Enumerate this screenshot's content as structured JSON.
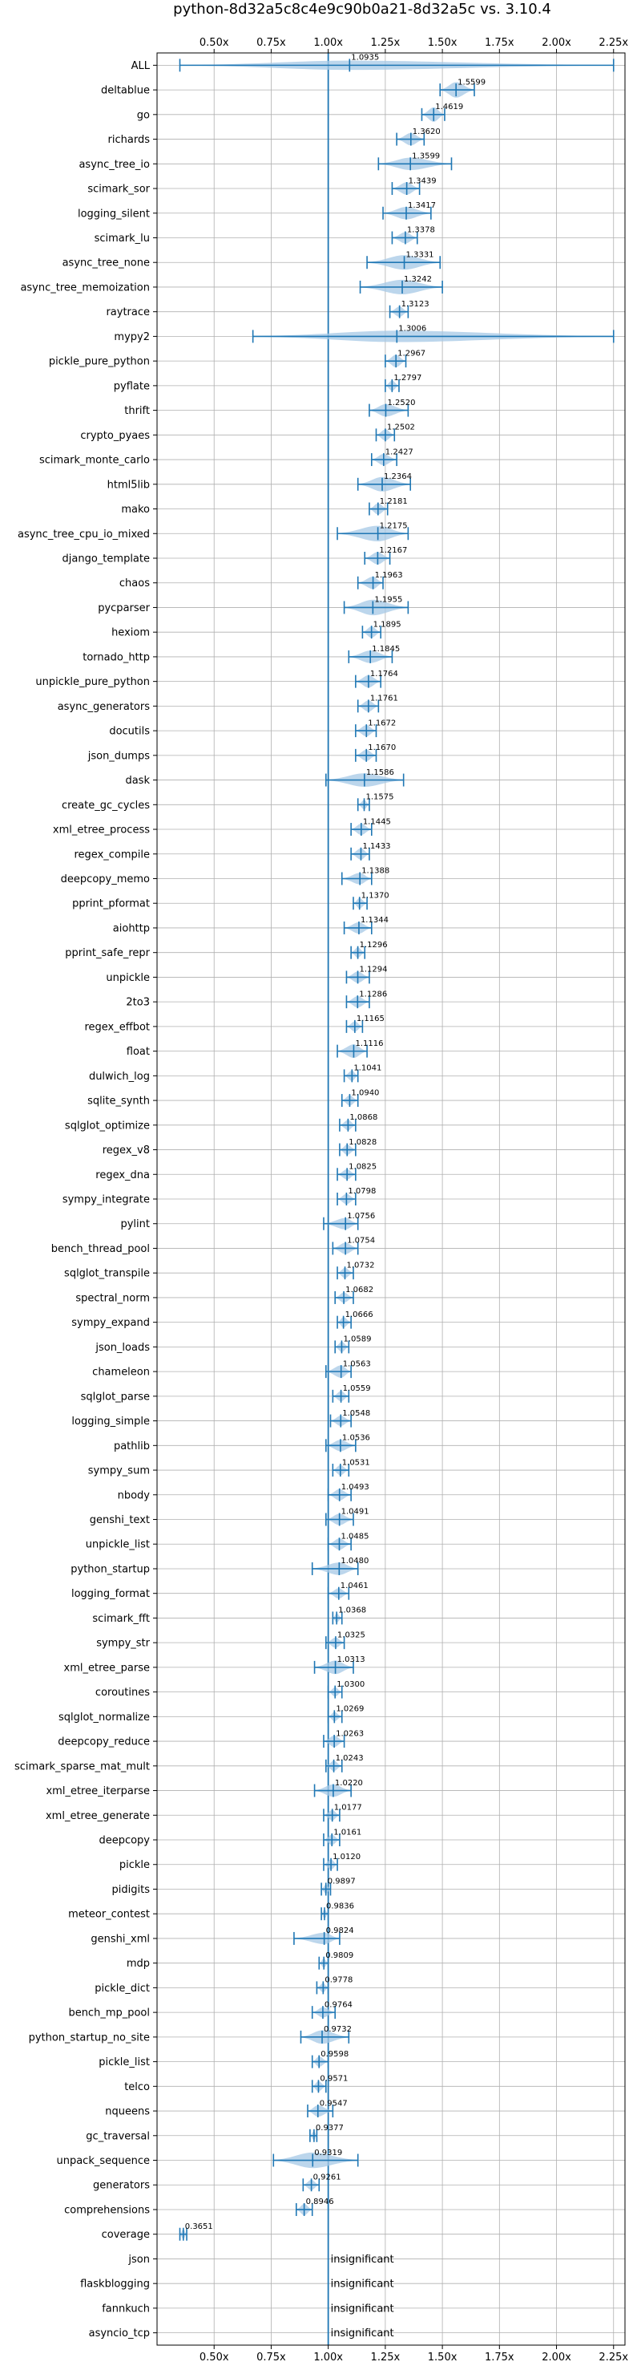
{
  "chart_data": {
    "type": "violin",
    "title": "python-8d32a5c8c4e9c90b0a21-8d32a5c vs. 3.10.4",
    "xlabel": "",
    "ylabel": "",
    "xlim": [
      0.25,
      2.3
    ],
    "xticks": [
      0.5,
      0.75,
      1.0,
      1.25,
      1.5,
      1.75,
      2.0,
      2.25
    ],
    "xtick_labels": [
      "0.50x",
      "0.75x",
      "1.00x",
      "1.25x",
      "1.50x",
      "1.75x",
      "2.00x",
      "2.25x"
    ],
    "reference_line": 1.0,
    "grid": true,
    "ticks_on_top_and_bottom": true,
    "colors": {
      "violin": "#a6c8e6",
      "line": "#1f77b4",
      "grid": "#b0b0b0",
      "axis": "#000000"
    },
    "insignificant_text": "insignificant",
    "benchmarks": [
      {
        "name": "ALL",
        "value": 1.0935,
        "label": "1.0935",
        "lo": 0.35,
        "hi": 2.25,
        "w": 0.45
      },
      {
        "name": "deltablue",
        "value": 1.5599,
        "label": "1.5599",
        "lo": 1.49,
        "hi": 1.64,
        "w": 0.75
      },
      {
        "name": "go",
        "value": 1.4619,
        "label": "1.4619",
        "lo": 1.41,
        "hi": 1.51,
        "w": 0.7
      },
      {
        "name": "richards",
        "value": 1.362,
        "label": "1.3620",
        "lo": 1.3,
        "hi": 1.42,
        "w": 0.6
      },
      {
        "name": "async_tree_io",
        "value": 1.3599,
        "label": "1.3599",
        "lo": 1.22,
        "hi": 1.54,
        "w": 0.6
      },
      {
        "name": "scimark_sor",
        "value": 1.3439,
        "label": "1.3439",
        "lo": 1.28,
        "hi": 1.4,
        "w": 0.6
      },
      {
        "name": "logging_silent",
        "value": 1.3417,
        "label": "1.3417",
        "lo": 1.24,
        "hi": 1.45,
        "w": 0.6
      },
      {
        "name": "scimark_lu",
        "value": 1.3378,
        "label": "1.3378",
        "lo": 1.28,
        "hi": 1.39,
        "w": 0.55
      },
      {
        "name": "async_tree_none",
        "value": 1.3331,
        "label": "1.3331",
        "lo": 1.17,
        "hi": 1.49,
        "w": 0.7
      },
      {
        "name": "async_tree_memoization",
        "value": 1.3242,
        "label": "1.3242",
        "lo": 1.14,
        "hi": 1.5,
        "w": 0.7
      },
      {
        "name": "raytrace",
        "value": 1.3123,
        "label": "1.3123",
        "lo": 1.27,
        "hi": 1.35,
        "w": 0.5
      },
      {
        "name": "mypy2",
        "value": 1.3006,
        "label": "1.3006",
        "lo": 0.67,
        "hi": 2.25,
        "w": 0.55
      },
      {
        "name": "pickle_pure_python",
        "value": 1.2967,
        "label": "1.2967",
        "lo": 1.25,
        "hi": 1.34,
        "w": 0.6
      },
      {
        "name": "pyflate",
        "value": 1.2797,
        "label": "1.2797",
        "lo": 1.25,
        "hi": 1.31,
        "w": 0.5
      },
      {
        "name": "thrift",
        "value": 1.252,
        "label": "1.2520",
        "lo": 1.18,
        "hi": 1.35,
        "w": 0.6
      },
      {
        "name": "crypto_pyaes",
        "value": 1.2502,
        "label": "1.2502",
        "lo": 1.21,
        "hi": 1.29,
        "w": 0.55
      },
      {
        "name": "scimark_monte_carlo",
        "value": 1.2427,
        "label": "1.2427",
        "lo": 1.19,
        "hi": 1.3,
        "w": 0.55
      },
      {
        "name": "html5lib",
        "value": 1.2364,
        "label": "1.2364",
        "lo": 1.13,
        "hi": 1.36,
        "w": 0.7
      },
      {
        "name": "mako",
        "value": 1.2181,
        "label": "1.2181",
        "lo": 1.18,
        "hi": 1.26,
        "w": 0.55
      },
      {
        "name": "async_tree_cpu_io_mixed",
        "value": 1.2175,
        "label": "1.2175",
        "lo": 1.04,
        "hi": 1.35,
        "w": 0.75
      },
      {
        "name": "django_template",
        "value": 1.2167,
        "label": "1.2167",
        "lo": 1.16,
        "hi": 1.27,
        "w": 0.6
      },
      {
        "name": "chaos",
        "value": 1.1963,
        "label": "1.1963",
        "lo": 1.13,
        "hi": 1.24,
        "w": 0.6
      },
      {
        "name": "pycparser",
        "value": 1.1955,
        "label": "1.1955",
        "lo": 1.07,
        "hi": 1.35,
        "w": 0.75
      },
      {
        "name": "hexiom",
        "value": 1.1895,
        "label": "1.1895",
        "lo": 1.15,
        "hi": 1.23,
        "w": 0.55
      },
      {
        "name": "tornado_http",
        "value": 1.1845,
        "label": "1.1845",
        "lo": 1.09,
        "hi": 1.28,
        "w": 0.6
      },
      {
        "name": "unpickle_pure_python",
        "value": 1.1764,
        "label": "1.1764",
        "lo": 1.12,
        "hi": 1.23,
        "w": 0.6
      },
      {
        "name": "async_generators",
        "value": 1.1761,
        "label": "1.1761",
        "lo": 1.13,
        "hi": 1.22,
        "w": 0.55
      },
      {
        "name": "docutils",
        "value": 1.1672,
        "label": "1.1672",
        "lo": 1.12,
        "hi": 1.21,
        "w": 0.55
      },
      {
        "name": "json_dumps",
        "value": 1.167,
        "label": "1.1670",
        "lo": 1.12,
        "hi": 1.21,
        "w": 0.55
      },
      {
        "name": "dask",
        "value": 1.1586,
        "label": "1.1586",
        "lo": 0.99,
        "hi": 1.33,
        "w": 0.65
      },
      {
        "name": "create_gc_cycles",
        "value": 1.1575,
        "label": "1.1575",
        "lo": 1.13,
        "hi": 1.18,
        "w": 0.45
      },
      {
        "name": "xml_etree_process",
        "value": 1.1445,
        "label": "1.1445",
        "lo": 1.1,
        "hi": 1.19,
        "w": 0.55
      },
      {
        "name": "regex_compile",
        "value": 1.1433,
        "label": "1.1433",
        "lo": 1.1,
        "hi": 1.18,
        "w": 0.55
      },
      {
        "name": "deepcopy_memo",
        "value": 1.1388,
        "label": "1.1388",
        "lo": 1.06,
        "hi": 1.19,
        "w": 0.55
      },
      {
        "name": "pprint_pformat",
        "value": 1.137,
        "label": "1.1370",
        "lo": 1.11,
        "hi": 1.17,
        "w": 0.5
      },
      {
        "name": "aiohttp",
        "value": 1.1344,
        "label": "1.1344",
        "lo": 1.07,
        "hi": 1.19,
        "w": 0.55
      },
      {
        "name": "pprint_safe_repr",
        "value": 1.1296,
        "label": "1.1296",
        "lo": 1.1,
        "hi": 1.16,
        "w": 0.5
      },
      {
        "name": "unpickle",
        "value": 1.1294,
        "label": "1.1294",
        "lo": 1.08,
        "hi": 1.18,
        "w": 0.55
      },
      {
        "name": "2to3",
        "value": 1.1286,
        "label": "1.1286",
        "lo": 1.08,
        "hi": 1.18,
        "w": 0.55
      },
      {
        "name": "regex_effbot",
        "value": 1.1165,
        "label": "1.1165",
        "lo": 1.08,
        "hi": 1.15,
        "w": 0.5
      },
      {
        "name": "float",
        "value": 1.1116,
        "label": "1.1116",
        "lo": 1.04,
        "hi": 1.17,
        "w": 0.65
      },
      {
        "name": "dulwich_log",
        "value": 1.1041,
        "label": "1.1041",
        "lo": 1.07,
        "hi": 1.13,
        "w": 0.5
      },
      {
        "name": "sqlite_synth",
        "value": 1.094,
        "label": "1.0940",
        "lo": 1.06,
        "hi": 1.13,
        "w": 0.5
      },
      {
        "name": "sqlglot_optimize",
        "value": 1.0868,
        "label": "1.0868",
        "lo": 1.05,
        "hi": 1.12,
        "w": 0.5
      },
      {
        "name": "regex_v8",
        "value": 1.0828,
        "label": "1.0828",
        "lo": 1.05,
        "hi": 1.12,
        "w": 0.5
      },
      {
        "name": "regex_dna",
        "value": 1.0825,
        "label": "1.0825",
        "lo": 1.04,
        "hi": 1.12,
        "w": 0.5
      },
      {
        "name": "sympy_integrate",
        "value": 1.0798,
        "label": "1.0798",
        "lo": 1.04,
        "hi": 1.12,
        "w": 0.5
      },
      {
        "name": "pylint",
        "value": 1.0756,
        "label": "1.0756",
        "lo": 0.98,
        "hi": 1.13,
        "w": 0.55
      },
      {
        "name": "bench_thread_pool",
        "value": 1.0754,
        "label": "1.0754",
        "lo": 1.02,
        "hi": 1.13,
        "w": 0.55
      },
      {
        "name": "sqlglot_transpile",
        "value": 1.0732,
        "label": "1.0732",
        "lo": 1.04,
        "hi": 1.11,
        "w": 0.5
      },
      {
        "name": "spectral_norm",
        "value": 1.0682,
        "label": "1.0682",
        "lo": 1.03,
        "hi": 1.11,
        "w": 0.5
      },
      {
        "name": "sympy_expand",
        "value": 1.0666,
        "label": "1.0666",
        "lo": 1.04,
        "hi": 1.1,
        "w": 0.5
      },
      {
        "name": "json_loads",
        "value": 1.0589,
        "label": "1.0589",
        "lo": 1.03,
        "hi": 1.09,
        "w": 0.5
      },
      {
        "name": "chameleon",
        "value": 1.0563,
        "label": "1.0563",
        "lo": 0.99,
        "hi": 1.1,
        "w": 0.6
      },
      {
        "name": "sqlglot_parse",
        "value": 1.0559,
        "label": "1.0559",
        "lo": 1.02,
        "hi": 1.09,
        "w": 0.5
      },
      {
        "name": "logging_simple",
        "value": 1.0548,
        "label": "1.0548",
        "lo": 1.01,
        "hi": 1.1,
        "w": 0.5
      },
      {
        "name": "pathlib",
        "value": 1.0536,
        "label": "1.0536",
        "lo": 0.99,
        "hi": 1.12,
        "w": 0.55
      },
      {
        "name": "sympy_sum",
        "value": 1.0531,
        "label": "1.0531",
        "lo": 1.02,
        "hi": 1.09,
        "w": 0.5
      },
      {
        "name": "nbody",
        "value": 1.0493,
        "label": "1.0493",
        "lo": 1.0,
        "hi": 1.1,
        "w": 0.55
      },
      {
        "name": "genshi_text",
        "value": 1.0491,
        "label": "1.0491",
        "lo": 0.99,
        "hi": 1.11,
        "w": 0.55
      },
      {
        "name": "unpickle_list",
        "value": 1.0485,
        "label": "1.0485",
        "lo": 1.0,
        "hi": 1.1,
        "w": 0.55
      },
      {
        "name": "python_startup",
        "value": 1.048,
        "label": "1.0480",
        "lo": 0.93,
        "hi": 1.13,
        "w": 0.6
      },
      {
        "name": "logging_format",
        "value": 1.0461,
        "label": "1.0461",
        "lo": 1.0,
        "hi": 1.09,
        "w": 0.5
      },
      {
        "name": "scimark_fft",
        "value": 1.0368,
        "label": "1.0368",
        "lo": 1.02,
        "hi": 1.06,
        "w": 0.45
      },
      {
        "name": "sympy_str",
        "value": 1.0325,
        "label": "1.0325",
        "lo": 0.99,
        "hi": 1.07,
        "w": 0.5
      },
      {
        "name": "xml_etree_parse",
        "value": 1.0313,
        "label": "1.0313",
        "lo": 0.94,
        "hi": 1.11,
        "w": 0.65
      },
      {
        "name": "coroutines",
        "value": 1.03,
        "label": "1.0300",
        "lo": 1.0,
        "hi": 1.06,
        "w": 0.45
      },
      {
        "name": "sqlglot_normalize",
        "value": 1.0269,
        "label": "1.0269",
        "lo": 1.0,
        "hi": 1.06,
        "w": 0.45
      },
      {
        "name": "deepcopy_reduce",
        "value": 1.0263,
        "label": "1.0263",
        "lo": 0.98,
        "hi": 1.07,
        "w": 0.55
      },
      {
        "name": "scimark_sparse_mat_mult",
        "value": 1.0243,
        "label": "1.0243",
        "lo": 0.99,
        "hi": 1.06,
        "w": 0.5
      },
      {
        "name": "xml_etree_iterparse",
        "value": 1.022,
        "label": "1.0220",
        "lo": 0.94,
        "hi": 1.1,
        "w": 0.6
      },
      {
        "name": "xml_etree_generate",
        "value": 1.0177,
        "label": "1.0177",
        "lo": 0.98,
        "hi": 1.05,
        "w": 0.5
      },
      {
        "name": "deepcopy",
        "value": 1.0161,
        "label": "1.0161",
        "lo": 0.98,
        "hi": 1.05,
        "w": 0.5
      },
      {
        "name": "pickle",
        "value": 1.012,
        "label": "1.0120",
        "lo": 0.98,
        "hi": 1.04,
        "w": 0.5
      },
      {
        "name": "pidigits",
        "value": 0.9897,
        "label": "0.9897",
        "lo": 0.97,
        "hi": 1.01,
        "w": 0.45
      },
      {
        "name": "meteor_contest",
        "value": 0.9836,
        "label": "0.9836",
        "lo": 0.97,
        "hi": 1.0,
        "w": 0.45
      },
      {
        "name": "genshi_xml",
        "value": 0.9824,
        "label": "0.9824",
        "lo": 0.85,
        "hi": 1.05,
        "w": 0.55
      },
      {
        "name": "mdp",
        "value": 0.9809,
        "label": "0.9809",
        "lo": 0.96,
        "hi": 1.0,
        "w": 0.45
      },
      {
        "name": "pickle_dict",
        "value": 0.9778,
        "label": "0.9778",
        "lo": 0.95,
        "hi": 1.0,
        "w": 0.45
      },
      {
        "name": "bench_mp_pool",
        "value": 0.9764,
        "label": "0.9764",
        "lo": 0.93,
        "hi": 1.03,
        "w": 0.5
      },
      {
        "name": "python_startup_no_site",
        "value": 0.9732,
        "label": "0.9732",
        "lo": 0.88,
        "hi": 1.09,
        "w": 0.65
      },
      {
        "name": "pickle_list",
        "value": 0.9598,
        "label": "0.9598",
        "lo": 0.93,
        "hi": 1.0,
        "w": 0.5
      },
      {
        "name": "telco",
        "value": 0.9571,
        "label": "0.9571",
        "lo": 0.93,
        "hi": 0.99,
        "w": 0.5
      },
      {
        "name": "nqueens",
        "value": 0.9547,
        "label": "0.9547",
        "lo": 0.91,
        "hi": 1.02,
        "w": 0.55
      },
      {
        "name": "gc_traversal",
        "value": 0.9377,
        "label": "0.9377",
        "lo": 0.92,
        "hi": 0.95,
        "w": 0.45
      },
      {
        "name": "unpack_sequence",
        "value": 0.9319,
        "label": "0.9319",
        "lo": 0.76,
        "hi": 1.13,
        "w": 0.75
      },
      {
        "name": "generators",
        "value": 0.9261,
        "label": "0.9261",
        "lo": 0.89,
        "hi": 0.96,
        "w": 0.5
      },
      {
        "name": "comprehensions",
        "value": 0.8946,
        "label": "0.8946",
        "lo": 0.86,
        "hi": 0.93,
        "w": 0.55
      },
      {
        "name": "coverage",
        "value": 0.3651,
        "label": "0.3651",
        "lo": 0.35,
        "hi": 0.38,
        "w": 0.5
      },
      {
        "name": "json",
        "value": null,
        "label": "insignificant"
      },
      {
        "name": "flaskblogging",
        "value": null,
        "label": "insignificant"
      },
      {
        "name": "fannkuch",
        "value": null,
        "label": "insignificant"
      },
      {
        "name": "asyncio_tcp",
        "value": null,
        "label": "insignificant"
      }
    ]
  }
}
